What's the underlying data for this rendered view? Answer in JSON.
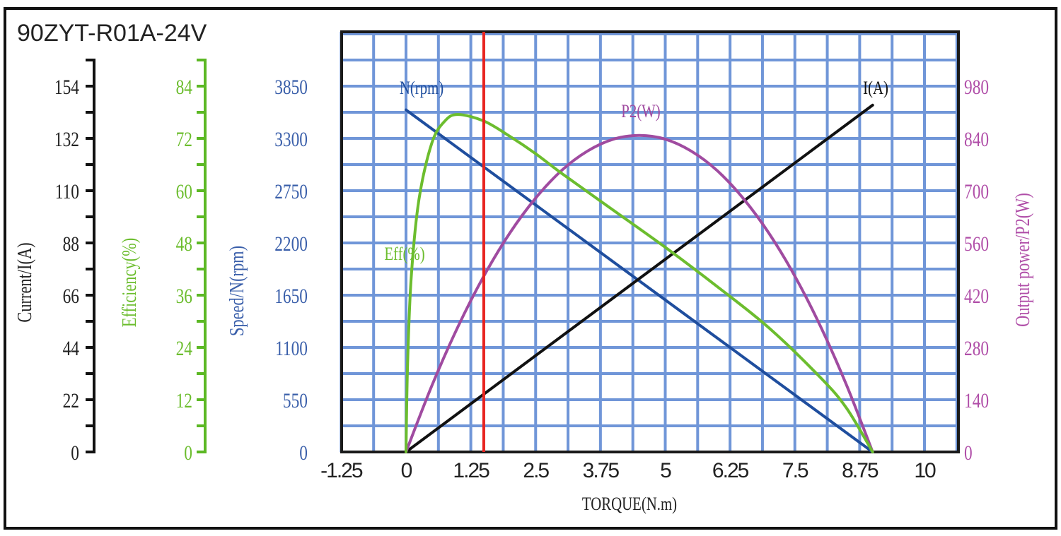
{
  "chart_data": {
    "type": "line",
    "title": "90ZYT-R01A-24V",
    "xlabel": "TORQUE(N.m)",
    "xlim": [
      -1.25,
      10.625
    ],
    "x_ticks": [
      "-1.25",
      "0",
      "1.25",
      "2.5",
      "3.75",
      "5",
      "6.25",
      "7.5",
      "8.75",
      "10"
    ],
    "grid": true,
    "marker_line": {
      "x": 1.5,
      "color": "#e8231f"
    },
    "axes": {
      "current": {
        "label": "Current/I(A)",
        "side": "left",
        "ticks": [
          "0",
          "22",
          "44",
          "66",
          "88",
          "110",
          "132",
          "154"
        ],
        "range": [
          0,
          176
        ],
        "color": "#222222"
      },
      "efficiency": {
        "label": "Efficiency(%)",
        "side": "left",
        "ticks": [
          "0",
          "12",
          "24",
          "36",
          "48",
          "60",
          "72",
          "84"
        ],
        "range": [
          0,
          96
        ],
        "color": "#6cbd2e"
      },
      "speed": {
        "label": "Speed/N(rpm)",
        "side": "left",
        "ticks": [
          "0",
          "550",
          "1100",
          "1650",
          "2200",
          "2750",
          "3300",
          "3850"
        ],
        "range": [
          0,
          4400
        ],
        "color": "#3a5faa"
      },
      "power": {
        "label": "Output power/P2(W)",
        "side": "right",
        "ticks": [
          "0",
          "140",
          "280",
          "420",
          "560",
          "700",
          "840",
          "980"
        ],
        "range": [
          0,
          1120
        ],
        "color": "#b04ea8"
      }
    },
    "series": [
      {
        "name": "N(rpm)",
        "axis": "speed",
        "color": "#1f4e9e",
        "points": [
          [
            0,
            3600
          ],
          [
            9.0,
            0
          ]
        ]
      },
      {
        "name": "I(A)",
        "axis": "current",
        "color": "#111111",
        "points": [
          [
            0,
            0
          ],
          [
            9.0,
            146
          ]
        ]
      },
      {
        "name": "P2(W)",
        "axis": "power",
        "color": "#a04ba0",
        "points": [
          [
            0,
            0
          ],
          [
            0.5,
            178
          ],
          [
            1,
            335
          ],
          [
            1.5,
            471
          ],
          [
            2,
            586
          ],
          [
            2.5,
            680
          ],
          [
            3,
            754
          ],
          [
            3.5,
            806
          ],
          [
            4,
            838
          ],
          [
            4.5,
            848
          ],
          [
            5,
            838
          ],
          [
            5.5,
            806
          ],
          [
            6,
            754
          ],
          [
            6.5,
            680
          ],
          [
            7,
            586
          ],
          [
            7.5,
            471
          ],
          [
            8,
            335
          ],
          [
            8.5,
            178
          ],
          [
            9,
            0
          ]
        ]
      },
      {
        "name": "Eff(%)",
        "axis": "efficiency",
        "color": "#6cbd2e",
        "points": [
          [
            0,
            0
          ],
          [
            0.03,
            20
          ],
          [
            0.1,
            40
          ],
          [
            0.25,
            58
          ],
          [
            0.5,
            71
          ],
          [
            0.75,
            76
          ],
          [
            1,
            77.5
          ],
          [
            1.5,
            76
          ],
          [
            2,
            72.5
          ],
          [
            2.5,
            68.5
          ],
          [
            3,
            64
          ],
          [
            4,
            55.5
          ],
          [
            5,
            47
          ],
          [
            6,
            38
          ],
          [
            7,
            28.5
          ],
          [
            8,
            17
          ],
          [
            8.5,
            10
          ],
          [
            9,
            0
          ]
        ]
      }
    ]
  }
}
